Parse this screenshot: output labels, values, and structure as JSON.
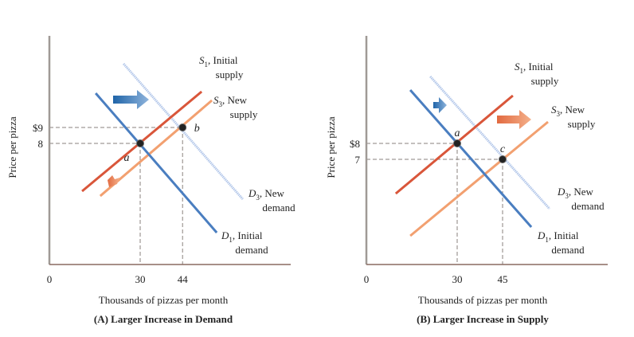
{
  "chart_data": [
    {
      "type": "line",
      "title": "(A) Larger Increase in Demand",
      "xlabel": "Thousands of pizzas per month",
      "ylabel": "Price per pizza",
      "x_ticks": [
        "0",
        "30",
        "44"
      ],
      "x_tick_values": [
        0,
        30,
        44
      ],
      "y_ticks": [
        "$9",
        "8"
      ],
      "y_tick_values": [
        9,
        8
      ],
      "colors": {
        "d1": "#4a7ec0",
        "d3": "#b4c8ea",
        "s1": "#d9563a",
        "s3": "#f2a070",
        "shift_demand_arrow": "#2f6fb0",
        "shift_supply_arrow": "#e8865a"
      },
      "series": [
        {
          "key": "d1",
          "name": "D1",
          "sub": "1",
          "label": "D",
          "label2": ", Initial",
          "label3": "demand",
          "points": [
            [
              15.3,
              11.15
            ],
            [
              55.3,
              2.4
            ]
          ]
        },
        {
          "key": "d3",
          "name": "D3",
          "sub": "3",
          "label": "D",
          "label2": ", New",
          "label3": "demand",
          "points": [
            [
              24.5,
              13.0
            ],
            [
              63.9,
              4.5
            ]
          ]
        },
        {
          "key": "s1",
          "name": "S1",
          "sub": "1",
          "label": "S",
          "label2": ", Initial",
          "label3": "supply",
          "points": [
            [
              10.8,
              5.0
            ],
            [
              50.3,
              11.25
            ]
          ]
        },
        {
          "key": "s3",
          "name": "S3",
          "sub": "3",
          "label": "S",
          "label2": ", New",
          "label3": "supply",
          "points": [
            [
              16.8,
              4.7
            ],
            [
              53.7,
              10.7
            ]
          ]
        }
      ],
      "equilibria": [
        {
          "label": "a",
          "x": 30,
          "y": 8
        },
        {
          "label": "b",
          "x": 44,
          "y": 9
        }
      ],
      "annotations": [
        "demand shift arrow (large)",
        "supply shift arrow (small)"
      ]
    },
    {
      "type": "line",
      "title": "(B) Larger Increase in Supply",
      "xlabel": "Thousands of pizzas per month",
      "ylabel": "Price per pizza",
      "x_ticks": [
        "0",
        "30",
        "45"
      ],
      "x_tick_values": [
        0,
        30,
        45
      ],
      "y_ticks": [
        "$8",
        "7"
      ],
      "y_tick_values": [
        8,
        7
      ],
      "colors": {
        "d1": "#4a7ec0",
        "d3": "#b4c8ea",
        "s1": "#d9563a",
        "s3": "#f2a070",
        "shift_demand_arrow": "#2f6fb0",
        "shift_supply_arrow": "#e8865a"
      },
      "series": [
        {
          "key": "d1",
          "name": "D1",
          "sub": "1",
          "label": "D",
          "label2": ", Initial",
          "label3": "demand",
          "points": [
            [
              14.5,
              11.35
            ],
            [
              54.5,
              2.75
            ]
          ]
        },
        {
          "key": "d3",
          "name": "D3",
          "sub": "3",
          "label": "D",
          "label2": ", New",
          "label3": "demand",
          "points": [
            [
              21.1,
              12.2
            ],
            [
              60.5,
              3.9
            ]
          ]
        },
        {
          "key": "s1",
          "name": "S1",
          "sub": "1",
          "label": "S",
          "label2": ", Initial",
          "label3": "supply",
          "points": [
            [
              9.7,
              4.85
            ],
            [
              48.4,
              11.0
            ]
          ]
        },
        {
          "key": "s3",
          "name": "S3",
          "sub": "3",
          "label": "S",
          "label2": ", New",
          "label3": "supply",
          "points": [
            [
              14.5,
              2.2
            ],
            [
              60.0,
              9.35
            ]
          ]
        }
      ],
      "equilibria": [
        {
          "label": "a",
          "x": 30,
          "y": 8
        },
        {
          "label": "c",
          "x": 45,
          "y": 7
        }
      ],
      "annotations": [
        "demand shift arrow (small)",
        "supply shift arrow (large)"
      ]
    }
  ]
}
